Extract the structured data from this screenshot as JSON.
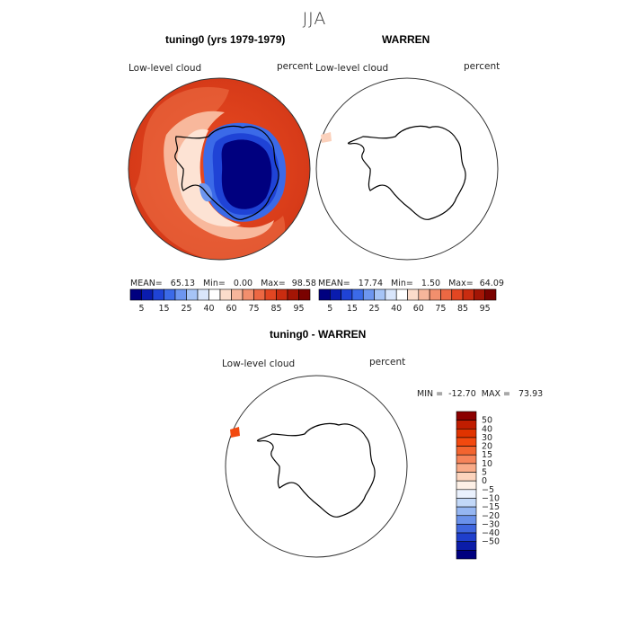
{
  "title": "JJA",
  "panels": [
    {
      "title": "tuning0 (yrs 1979-1979)",
      "field_label": "Low-level cloud",
      "units": "percent",
      "stats": {
        "mean_label": "MEAN=",
        "mean": "65.13",
        "min_label": "Min=",
        "min": "0.00",
        "max_label": "Max=",
        "max": "98.58"
      }
    },
    {
      "title": "WARREN",
      "field_label": "Low-level cloud",
      "units": "percent",
      "stats": {
        "mean_label": "MEAN=",
        "mean": "17.74",
        "min_label": "Min=",
        "min": "1.50",
        "max_label": "Max=",
        "max": "64.09"
      }
    },
    {
      "title": "tuning0 - WARREN",
      "field_label": "Low-level cloud",
      "units": "percent",
      "stats": {
        "min_label": "MIN =",
        "min": "-12.70",
        "max_label": "MAX =",
        "max": "73.93"
      }
    }
  ],
  "colorbar_top": {
    "labels": [
      "5",
      "15",
      "25",
      "40",
      "60",
      "75",
      "85",
      "95"
    ],
    "colors": [
      "#00007f",
      "#0a1cae",
      "#1f43d6",
      "#3b6ae8",
      "#6d96f0",
      "#a6c4f6",
      "#d9e6fb",
      "#ffffff",
      "#fbdccb",
      "#f6b69b",
      "#f28f6d",
      "#ec6843",
      "#e24622",
      "#c92c10",
      "#a31505",
      "#7a0200"
    ]
  },
  "colorbar_diff": {
    "labels": [
      "50",
      "40",
      "30",
      "20",
      "15",
      "10",
      "5",
      "0",
      "−5",
      "−10",
      "−15",
      "−20",
      "−30",
      "−40",
      "−50"
    ],
    "colors": [
      "#8b0000",
      "#c01d00",
      "#e03300",
      "#f2490f",
      "#f3642f",
      "#f6845a",
      "#f9ab88",
      "#fcd4bd",
      "#fdf0e6",
      "#eaf1fd",
      "#c2d8f8",
      "#95b6f2",
      "#6a91ea",
      "#3f66de",
      "#1f3fcc",
      "#0b1ca8",
      "#00007f"
    ]
  },
  "chart_data": [
    {
      "type": "heatmap",
      "projection": "south-polar-stereographic",
      "title": "tuning0 (yrs 1979-1979)",
      "variable": "Low-level cloud",
      "units": "percent",
      "levels": [
        5,
        10,
        15,
        20,
        25,
        30,
        40,
        50,
        60,
        70,
        75,
        80,
        85,
        90,
        95
      ],
      "mean": 65.13,
      "min": 0.0,
      "max": 98.58
    },
    {
      "type": "heatmap",
      "projection": "south-polar-stereographic",
      "title": "WARREN",
      "variable": "Low-level cloud",
      "units": "percent",
      "levels": [
        5,
        10,
        15,
        20,
        25,
        30,
        40,
        50,
        60,
        70,
        75,
        80,
        85,
        90,
        95
      ],
      "mean": 17.74,
      "min": 1.5,
      "max": 64.09
    },
    {
      "type": "heatmap",
      "projection": "south-polar-stereographic",
      "title": "tuning0 - WARREN",
      "variable": "Low-level cloud",
      "units": "percent",
      "levels": [
        -50,
        -40,
        -30,
        -20,
        -15,
        -10,
        -5,
        0,
        5,
        10,
        15,
        20,
        30,
        40,
        50
      ],
      "min": -12.7,
      "max": 73.93
    }
  ]
}
